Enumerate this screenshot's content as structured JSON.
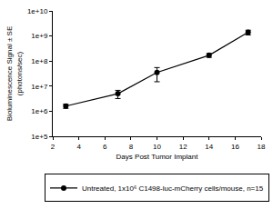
{
  "chart_data": {
    "type": "line",
    "x_label": "Days Post Tumor Implant",
    "y_label": "Bioluminescence Signal ± SE\n(photons/sec)",
    "log": "y",
    "grid": false,
    "legend": "bottom",
    "xlim": [
      2,
      18
    ],
    "xticks": [
      2,
      4,
      6,
      8,
      10,
      12,
      14,
      16,
      18
    ],
    "ylim": [
      100000,
      10000000000
    ],
    "yticks": [
      {
        "value": 100000,
        "label": "1e+5"
      },
      {
        "value": 1000000,
        "label": "1e+6"
      },
      {
        "value": 10000000,
        "label": "1e+7"
      },
      {
        "value": 100000000,
        "label": "1e+8"
      },
      {
        "value": 1000000000,
        "label": "1e+9"
      },
      {
        "value": 10000000000,
        "label": "1e+10"
      }
    ],
    "x": [
      3,
      7,
      10,
      14,
      17
    ],
    "series": [
      {
        "name": "Untreated, 1x10⁶ C1498-luc-mCherry cells/mouse, n=15",
        "color": "#000000",
        "marker": "circle",
        "line_style": "solid",
        "values": [
          1600000,
          5000000,
          35000000,
          170000000,
          1400000000
        ],
        "error": [
          300000,
          1800000,
          20000000,
          30000000,
          300000000
        ]
      }
    ]
  }
}
